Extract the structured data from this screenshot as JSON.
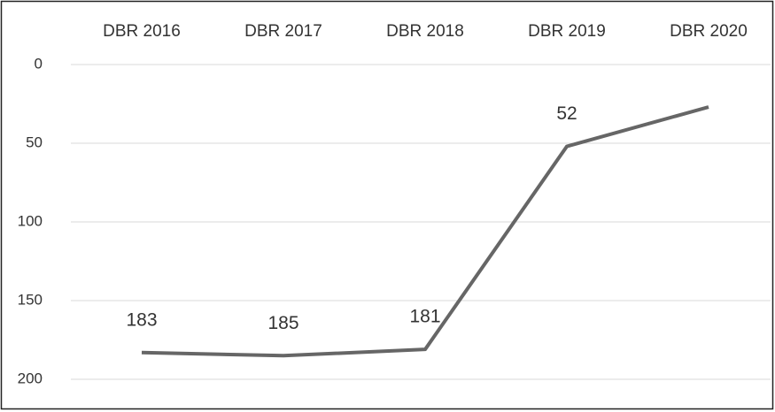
{
  "chart_data": {
    "type": "line",
    "categories": [
      "DBR 2016",
      "DBR 2017",
      "DBR 2018",
      "DBR 2019",
      "DBR 2020"
    ],
    "series": [
      {
        "color": "#666666",
        "values": [
          183,
          185,
          181,
          52,
          27
        ]
      }
    ],
    "value_labels": [
      "183",
      "185",
      "181",
      "52",
      null
    ],
    "ylim": [
      0,
      200
    ],
    "yticks": [
      0,
      50,
      100,
      150,
      200
    ],
    "y_inverted": true,
    "grid": true
  }
}
